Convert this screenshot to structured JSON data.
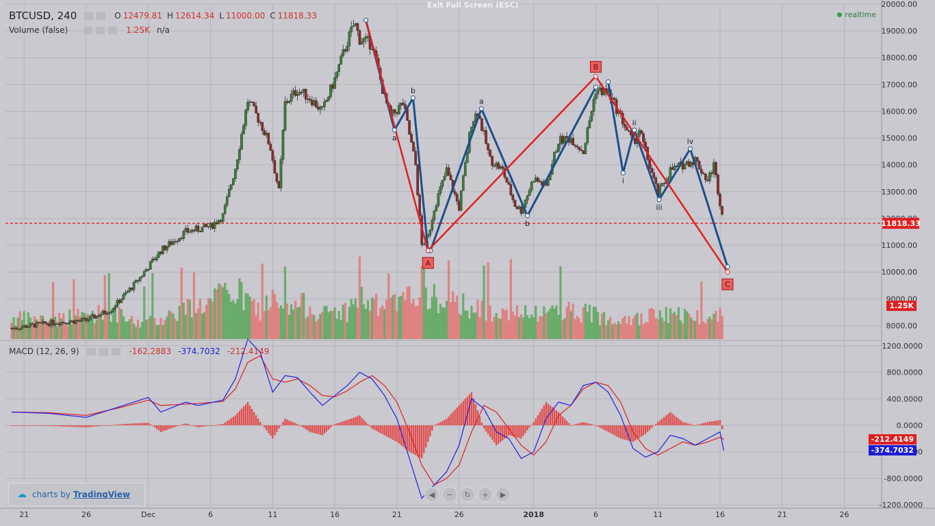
{
  "header": {
    "symbol": "BTCUSD, 240",
    "ohlc": [
      {
        "k": "O",
        "v": "12479.81"
      },
      {
        "k": "H",
        "v": "12614.34"
      },
      {
        "k": "L",
        "v": "11000.00"
      },
      {
        "k": "C",
        "v": "11818.33"
      }
    ],
    "volume_label": "Volume (false)",
    "volume_value": "1.25K",
    "volume_extra": "n/a",
    "macd_label": "MACD (12, 26, 9)",
    "macd_hist": "-162.2883",
    "macd_line": "-374.7032",
    "macd_signal": "-212.4149",
    "exit_fullscreen": "Exit Full Screen (ESC)",
    "realtime": "realtime"
  },
  "branding": {
    "prefix": "charts by",
    "name": "TradingView"
  },
  "colors": {
    "background": "#c9c9cf",
    "up": "#3b7d3b",
    "down": "#8b2a2a",
    "vol_up": "#5fa85f",
    "vol_down": "#e07a7a",
    "red": "#e02020",
    "blue": "#1a4f8a",
    "macd": "#2020e0",
    "signal": "#e02020",
    "hist": "#e05050",
    "grid": "#b4b5bb"
  },
  "chart_data": [
    {
      "type": "line",
      "name": "price",
      "ylim": [
        7500,
        20000
      ],
      "y_ticks": [
        20000,
        19000,
        18000,
        17000,
        16000,
        15000,
        14000,
        13000,
        12000,
        11000,
        10000,
        9000,
        8000
      ],
      "y_tick_labels": [
        "20000.00",
        "19000.00",
        "18000.00",
        "17000.00",
        "16000.00",
        "15000.00",
        "14000.00",
        "13000.00",
        "12000.00",
        "11000.00",
        "10000.00",
        "9000.00",
        "8000.00"
      ],
      "x_tick_labels": [
        "21",
        "26",
        "Dec",
        "6",
        "11",
        "16",
        "21",
        "26",
        "2018",
        "6",
        "11",
        "16",
        "21",
        "26"
      ],
      "x_tick_days": [
        -10,
        -5,
        0,
        5,
        10,
        15,
        20,
        25,
        31,
        36,
        41,
        46,
        51,
        56
      ],
      "x_range_days": [
        -11.5,
        59
      ],
      "current_price": 11818.33,
      "current_price_label": "11818.33",
      "current_volume_label": "1.25K",
      "price_path_days": [
        -11,
        -8,
        -5,
        -3,
        -1,
        1,
        3,
        5,
        6,
        7,
        8,
        9,
        9.8,
        10.5,
        11,
        12,
        13,
        14,
        15,
        16,
        16.6,
        17,
        18,
        19,
        19.5,
        20.5,
        21.5,
        22,
        22.5,
        23,
        24,
        25,
        26,
        26.5,
        27.5,
        28.5,
        29.5,
        30,
        31,
        32,
        33,
        34,
        35,
        36,
        37,
        38,
        39,
        39.5,
        40,
        41,
        42,
        43,
        44,
        45,
        45.5,
        46,
        46.3
      ],
      "price_path_values": [
        7900,
        8100,
        8200,
        8600,
        9600,
        10800,
        11500,
        11700,
        12100,
        13900,
        16400,
        15600,
        14700,
        13000,
        16300,
        16800,
        16500,
        16000,
        17200,
        18600,
        19300,
        18700,
        18500,
        16500,
        15800,
        16300,
        14000,
        11000,
        11300,
        12400,
        13800,
        12400,
        15600,
        16000,
        14200,
        13800,
        12500,
        12300,
        13500,
        13200,
        14900,
        15000,
        14500,
        16800,
        16700,
        15800,
        14800,
        15300,
        14500,
        12900,
        13800,
        14000,
        14200,
        13400,
        14000,
        12600,
        11818
      ],
      "volume_path_values": [
        30,
        28,
        35,
        40,
        22,
        30,
        45,
        52,
        65,
        70,
        55,
        40,
        60,
        45,
        38,
        50,
        48,
        35,
        42,
        40,
        55,
        60,
        50,
        45,
        48,
        52,
        70,
        85,
        65,
        60,
        45,
        55,
        48,
        42,
        40,
        50,
        38,
        36,
        34,
        40,
        45,
        42,
        38,
        36,
        30,
        35,
        32,
        28,
        30,
        38,
        34,
        36,
        32,
        35,
        30,
        38,
        42
      ],
      "waves": {
        "red": {
          "days": [
            22.5,
            36,
            46.6
          ],
          "values": [
            10800,
            17300,
            10000
          ],
          "labels": [
            "A",
            "B",
            "C"
          ]
        },
        "blue_abc1": {
          "days": [
            17.5,
            19.8,
            21.3,
            22.5
          ],
          "values": [
            19400,
            15300,
            16500,
            10800
          ],
          "labels": [
            "",
            "a",
            "b",
            ""
          ]
        },
        "blue_abc2": {
          "days": [
            22.7,
            26.8,
            30.5,
            36
          ],
          "values": [
            10800,
            16100,
            12100,
            16900
          ],
          "labels": [
            "",
            "a",
            "b",
            ""
          ]
        },
        "blue_impulse": {
          "days": [
            37,
            38.2,
            39.1,
            41.1,
            43.6,
            46.6
          ],
          "values": [
            17100,
            13700,
            15300,
            12700,
            14600,
            10200
          ],
          "labels": [
            "",
            "i",
            "ii",
            "iii",
            "iv",
            ""
          ]
        }
      }
    },
    {
      "type": "line",
      "name": "MACD",
      "ylim": [
        -1250,
        1250
      ],
      "y_ticks": [
        1200,
        800,
        400,
        0,
        -400,
        -800,
        -1200
      ],
      "y_tick_labels": [
        "1200.0000",
        "800.0000",
        "400.0000",
        "0.0000",
        "-400.0000",
        "-800.0000",
        "-1200.0000"
      ],
      "macd_days": [
        -11,
        -8,
        -5,
        -2,
        0,
        1,
        3,
        4,
        6,
        7,
        8,
        9,
        10,
        11,
        12,
        13,
        14,
        15,
        16,
        17,
        18,
        19,
        20,
        21,
        22,
        23,
        24,
        25,
        26,
        27,
        28,
        29,
        30,
        31,
        32,
        33,
        34,
        35,
        36,
        37,
        38,
        39,
        40,
        41,
        42,
        43,
        44,
        45,
        46,
        46.3
      ],
      "macd_values": [
        200,
        180,
        120,
        300,
        420,
        200,
        350,
        300,
        380,
        700,
        1300,
        1100,
        500,
        750,
        720,
        500,
        300,
        450,
        600,
        800,
        700,
        450,
        100,
        -500,
        -1100,
        -900,
        -700,
        -300,
        400,
        250,
        -100,
        -200,
        -500,
        -400,
        100,
        350,
        300,
        600,
        650,
        500,
        150,
        -350,
        -480,
        -400,
        -150,
        -200,
        -300,
        -200,
        -100,
        -380
      ],
      "signal_values": [
        200,
        190,
        150,
        280,
        380,
        300,
        320,
        330,
        360,
        550,
        950,
        1050,
        700,
        650,
        700,
        600,
        450,
        430,
        520,
        650,
        750,
        600,
        350,
        -100,
        -600,
        -900,
        -800,
        -600,
        -100,
        300,
        200,
        -50,
        -300,
        -450,
        -250,
        150,
        300,
        550,
        650,
        600,
        350,
        -100,
        -350,
        -450,
        -350,
        -250,
        -300,
        -250,
        -180,
        -212
      ],
      "last_macd": "-374.7032",
      "last_signal": "-212.4149"
    }
  ],
  "nav_controls": [
    "prev",
    "zoom-out",
    "reset",
    "zoom-in",
    "next"
  ]
}
